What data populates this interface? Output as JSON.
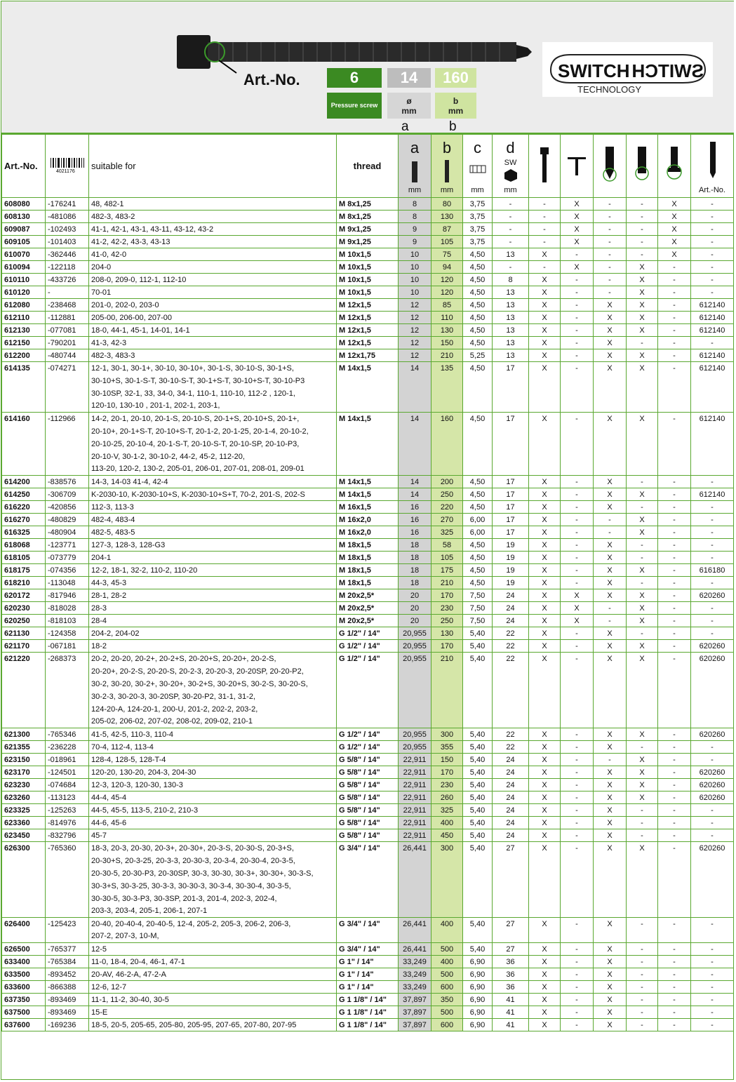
{
  "header": {
    "art_label": "Art.-No.",
    "box_art_value": "6",
    "box_art_caption": "Pressure screw",
    "box_a_value": "14",
    "box_a_caption_1": "ø",
    "box_a_caption_2": "mm",
    "box_b_value": "160",
    "box_b_caption_1": "b",
    "box_b_caption_2": "mm",
    "letter_a": "a",
    "letter_b": "b",
    "logo_text_1": "SWITCH",
    "logo_text_2": "SWITCH",
    "logo_sub": "TECHNOLOGY"
  },
  "columns": {
    "art": "Art.-No.",
    "barcode_num": "4021176",
    "suitable": "suitable for",
    "thread": "thread",
    "a": "a",
    "a_unit": "mm",
    "b": "b",
    "b_unit": "mm",
    "c": "c",
    "c_unit": "mm",
    "c_scale": "1 2 3",
    "d": "d",
    "d_sw": "SW",
    "d_unit": "mm",
    "last": "Art.-No."
  },
  "rows": [
    {
      "art": "608080",
      "code": "-176241",
      "lines": [
        "48, 482-1"
      ],
      "thread": "M  8x1,25",
      "a": "8",
      "b": "80",
      "c": "3,75",
      "d": "-",
      "f1": "-",
      "f2": "X",
      "f3": "-",
      "f4": "-",
      "f5": "X",
      "last": "-"
    },
    {
      "art": "608130",
      "code": "-481086",
      "lines": [
        "482-3, 483-2"
      ],
      "thread": "M  8x1,25",
      "a": "8",
      "b": "130",
      "c": "3,75",
      "d": "-",
      "f1": "-",
      "f2": "X",
      "f3": "-",
      "f4": "-",
      "f5": "X",
      "last": "-"
    },
    {
      "art": "609087",
      "code": "-102493",
      "lines": [
        "41-1, 42-1, 43-1, 43-11, 43-12, 43-2"
      ],
      "thread": "M  9x1,25",
      "a": "9",
      "b": "87",
      "c": "3,75",
      "d": "-",
      "f1": "-",
      "f2": "X",
      "f3": "-",
      "f4": "-",
      "f5": "X",
      "last": "-"
    },
    {
      "art": "609105",
      "code": "-101403",
      "lines": [
        "41-2, 42-2, 43-3, 43-13"
      ],
      "thread": "M  9x1,25",
      "a": "9",
      "b": "105",
      "c": "3,75",
      "d": "-",
      "f1": "-",
      "f2": "X",
      "f3": "-",
      "f4": "-",
      "f5": "X",
      "last": "-"
    },
    {
      "art": "610070",
      "code": "-362446",
      "lines": [
        "41-0, 42-0"
      ],
      "thread": "M 10x1,5",
      "a": "10",
      "b": "75",
      "c": "4,50",
      "d": "13",
      "f1": "X",
      "f2": "-",
      "f3": "-",
      "f4": "-",
      "f5": "X",
      "last": "-"
    },
    {
      "art": "610094",
      "code": "-122118",
      "lines": [
        "204-0"
      ],
      "thread": "M 10x1,5",
      "a": "10",
      "b": "94",
      "c": "4,50",
      "d": "-",
      "f1": "-",
      "f2": "X",
      "f3": "-",
      "f4": "X",
      "f5": "-",
      "last": "-"
    },
    {
      "art": "610110",
      "code": "-433726",
      "lines": [
        "208-0, 209-0, 112-1, 112-10"
      ],
      "thread": "M 10x1,5",
      "a": "10",
      "b": "120",
      "c": "4,50",
      "d": "8",
      "f1": "X",
      "f2": "-",
      "f3": "-",
      "f4": "X",
      "f5": "-",
      "last": "-"
    },
    {
      "art": "610120",
      "code": "-",
      "lines": [
        "70-01"
      ],
      "thread": "M 10x1,5",
      "a": "10",
      "b": "120",
      "c": "4,50",
      "d": "13",
      "f1": "X",
      "f2": "-",
      "f3": "-",
      "f4": "X",
      "f5": "-",
      "last": "-"
    },
    {
      "art": "612080",
      "code": "-238468",
      "lines": [
        "201-0, 202-0, 203-0"
      ],
      "thread": "M 12x1,5",
      "a": "12",
      "b": "85",
      "c": "4,50",
      "d": "13",
      "f1": "X",
      "f2": "-",
      "f3": "X",
      "f4": "X",
      "f5": "-",
      "last": "612140"
    },
    {
      "art": "612110",
      "code": "-112881",
      "lines": [
        "205-00, 206-00, 207-00"
      ],
      "thread": "M 12x1,5",
      "a": "12",
      "b": "110",
      "c": "4,50",
      "d": "13",
      "f1": "X",
      "f2": "-",
      "f3": "X",
      "f4": "X",
      "f5": "-",
      "last": "612140"
    },
    {
      "art": "612130",
      "code": "-077081",
      "lines": [
        "18-0, 44-1, 45-1, 14-01, 14-1"
      ],
      "thread": "M 12x1,5",
      "a": "12",
      "b": "130",
      "c": "4,50",
      "d": "13",
      "f1": "X",
      "f2": "-",
      "f3": "X",
      "f4": "X",
      "f5": "-",
      "last": "612140"
    },
    {
      "art": "612150",
      "code": "-790201",
      "lines": [
        "41-3, 42-3"
      ],
      "thread": "M 12x1,5",
      "a": "12",
      "b": "150",
      "c": "4,50",
      "d": "13",
      "f1": "X",
      "f2": "-",
      "f3": "X",
      "f4": "-",
      "f5": "-",
      "last": "-"
    },
    {
      "art": "612200",
      "code": "-480744",
      "lines": [
        "482-3, 483-3"
      ],
      "thread": "M 12x1,75",
      "a": "12",
      "b": "210",
      "c": "5,25",
      "d": "13",
      "f1": "X",
      "f2": "-",
      "f3": "X",
      "f4": "X",
      "f5": "-",
      "last": "612140"
    },
    {
      "art": "614135",
      "code": "-074271",
      "lines": [
        "12-1, 30-1, 30-1+, 30-10, 30-10+, 30-1-S, 30-10-S, 30-1+S,",
        "30-10+S, 30-1-S-T, 30-10-S-T, 30-1+S-T, 30-10+S-T, 30-10-P3",
        "30-10SP, 32-1, 33, 34-0, 34-1, 110-1, 110-10, 112-2 , 120-1,",
        "120-10, 130-10 , 201-1, 202-1, 203-1,"
      ],
      "thread": "M 14x1,5",
      "a": "14",
      "b": "135",
      "c": "4,50",
      "d": "17",
      "f1": "X",
      "f2": "-",
      "f3": "X",
      "f4": "X",
      "f5": "-",
      "last": "612140"
    },
    {
      "art": "614160",
      "code": "-112966",
      "lines": [
        "14-2, 20-1, 20-10, 20-1-S, 20-10-S, 20-1+S,  20-10+S,  20-1+,",
        "20-10+, 20-1+S-T, 20-10+S-T, 20-1-2, 20-1-25, 20-1-4, 20-10-2,",
        "20-10-25, 20-10-4, 20-1-S-T, 20-10-S-T, 20-10-SP,  20-10-P3,",
        "20-10-V, 30-1-2, 30-10-2, 44-2, 45-2, 112-20,",
        "113-20, 120-2, 130-2, 205-01, 206-01, 207-01, 208-01, 209-01"
      ],
      "thread": "M 14x1,5",
      "a": "14",
      "b": "160",
      "c": "4,50",
      "d": "17",
      "f1": "X",
      "f2": "-",
      "f3": "X",
      "f4": "X",
      "f5": "-",
      "last": "612140"
    },
    {
      "art": "614200",
      "code": "-838576",
      "lines": [
        "14-3, 14-03 41-4, 42-4"
      ],
      "thread": "M 14x1,5",
      "a": "14",
      "b": "200",
      "c": "4,50",
      "d": "17",
      "f1": "X",
      "f2": "-",
      "f3": "X",
      "f4": "-",
      "f5": "-",
      "last": "-"
    },
    {
      "art": "614250",
      "code": "-306709",
      "lines": [
        "K-2030-10, K-2030-10+S, K-2030-10+S+T, 70-2, 201-S, 202-S"
      ],
      "thread": "M 14x1,5",
      "a": "14",
      "b": "250",
      "c": "4,50",
      "d": "17",
      "f1": "X",
      "f2": "-",
      "f3": "X",
      "f4": "X",
      "f5": "-",
      "last": "612140"
    },
    {
      "art": "616220",
      "code": "-420856",
      "lines": [
        "112-3, 113-3"
      ],
      "thread": "M 16x1,5",
      "a": "16",
      "b": "220",
      "c": "4,50",
      "d": "17",
      "f1": "X",
      "f2": "-",
      "f3": "X",
      "f4": "-",
      "f5": "-",
      "last": "-"
    },
    {
      "art": "616270",
      "code": "-480829",
      "lines": [
        "482-4, 483-4"
      ],
      "thread": "M 16x2,0",
      "a": "16",
      "b": "270",
      "c": "6,00",
      "d": "17",
      "f1": "X",
      "f2": "-",
      "f3": "-",
      "f4": "X",
      "f5": "-",
      "last": "-"
    },
    {
      "art": "616325",
      "code": "-480904",
      "lines": [
        "482-5, 483-5"
      ],
      "thread": "M 16x2,0",
      "a": "16",
      "b": "325",
      "c": "6,00",
      "d": "17",
      "f1": "X",
      "f2": "-",
      "f3": "-",
      "f4": "X",
      "f5": "-",
      "last": "-"
    },
    {
      "art": "618068",
      "code": "-123771",
      "lines": [
        "127-3, 128-3, 128-G3"
      ],
      "thread": "M 18x1,5",
      "a": "18",
      "b": "58",
      "c": "4,50",
      "d": "19",
      "f1": "X",
      "f2": "-",
      "f3": "X",
      "f4": "-",
      "f5": "-",
      "last": "-"
    },
    {
      "art": "618105",
      "code": "-073779",
      "lines": [
        "204-1"
      ],
      "thread": "M 18x1,5",
      "a": "18",
      "b": "105",
      "c": "4,50",
      "d": "19",
      "f1": "X",
      "f2": "-",
      "f3": "X",
      "f4": "-",
      "f5": "-",
      "last": "-"
    },
    {
      "art": "618175",
      "code": "-074356",
      "lines": [
        "12-2, 18-1, 32-2, 110-2, 110-20"
      ],
      "thread": "M 18x1,5",
      "a": "18",
      "b": "175",
      "c": "4,50",
      "d": "19",
      "f1": "X",
      "f2": "-",
      "f3": "X",
      "f4": "X",
      "f5": "-",
      "last": "616180"
    },
    {
      "art": "618210",
      "code": "-113048",
      "lines": [
        "44-3, 45-3"
      ],
      "thread": "M 18x1,5",
      "a": "18",
      "b": "210",
      "c": "4,50",
      "d": "19",
      "f1": "X",
      "f2": "-",
      "f3": "X",
      "f4": "-",
      "f5": "-",
      "last": "-"
    },
    {
      "art": "620172",
      "code": "-817946",
      "lines": [
        "28-1, 28-2"
      ],
      "thread": "M 20x2,5*",
      "a": "20",
      "b": "170",
      "c": "7,50",
      "d": "24",
      "f1": "X",
      "f2": "X",
      "f3": "X",
      "f4": "X",
      "f5": "-",
      "last": "620260"
    },
    {
      "art": "620230",
      "code": "-818028",
      "lines": [
        "28-3"
      ],
      "thread": "M 20x2,5*",
      "a": "20",
      "b": "230",
      "c": "7,50",
      "d": "24",
      "f1": "X",
      "f2": "X",
      "f3": "-",
      "f4": "X",
      "f5": "-",
      "last": "-"
    },
    {
      "art": "620250",
      "code": "-818103",
      "lines": [
        "28-4"
      ],
      "thread": "M 20x2,5*",
      "a": "20",
      "b": "250",
      "c": "7,50",
      "d": "24",
      "f1": "X",
      "f2": "X",
      "f3": "-",
      "f4": "X",
      "f5": "-",
      "last": "-"
    },
    {
      "art": "621130",
      "code": "-124358",
      "lines": [
        "204-2, 204-02"
      ],
      "thread": "G 1/2\" / 14\"",
      "a": "20,955",
      "b": "130",
      "c": "5,40",
      "d": "22",
      "f1": "X",
      "f2": "-",
      "f3": "X",
      "f4": "-",
      "f5": "-",
      "last": "-"
    },
    {
      "art": "621170",
      "code": "-067181",
      "lines": [
        "18-2"
      ],
      "thread": "G 1/2\" / 14\"",
      "a": "20,955",
      "b": "170",
      "c": "5,40",
      "d": "22",
      "f1": "X",
      "f2": "-",
      "f3": "X",
      "f4": "X",
      "f5": "-",
      "last": "620260"
    },
    {
      "art": "621220",
      "code": "-268373",
      "lines": [
        "20-2, 20-20, 20-2+, 20-2+S, 20-20+S, 20-20+, 20-2-S,",
        "20-20+, 20-2-S, 20-20-S, 20-2-3, 20-20-3, 20-20SP, 20-20-P2,",
        "30-2, 30-20, 30-2+, 30-20+, 30-2+S, 30-20+S, 30-2-S, 30-20-S,",
        "30-2-3, 30-20-3, 30-20SP, 30-20-P2, 31-1, 31-2,",
        "124-20-A, 124-20-1, 200-U, 201-2, 202-2, 203-2,",
        "205-02, 206-02, 207-02, 208-02, 209-02, 210-1"
      ],
      "thread": "G 1/2\" / 14\"",
      "a": "20,955",
      "b": "210",
      "c": "5,40",
      "d": "22",
      "f1": "X",
      "f2": "-",
      "f3": "X",
      "f4": "X",
      "f5": "-",
      "last": "620260"
    },
    {
      "art": "621300",
      "code": "-765346",
      "lines": [
        "41-5, 42-5, 110-3, 110-4"
      ],
      "thread": "G 1/2\" / 14\"",
      "a": "20,955",
      "b": "300",
      "c": "5,40",
      "d": "22",
      "f1": "X",
      "f2": "-",
      "f3": "X",
      "f4": "X",
      "f5": "-",
      "last": "620260"
    },
    {
      "art": "621355",
      "code": "-236228",
      "lines": [
        "70-4, 112-4, 113-4"
      ],
      "thread": "G 1/2\" / 14\"",
      "a": "20,955",
      "b": "355",
      "c": "5,40",
      "d": "22",
      "f1": "X",
      "f2": "-",
      "f3": "X",
      "f4": "-",
      "f5": "-",
      "last": "-"
    },
    {
      "art": "623150",
      "code": "-018961",
      "lines": [
        "128-4, 128-5, 128-T-4"
      ],
      "thread": "G 5/8\" / 14\"",
      "a": "22,911",
      "b": "150",
      "c": "5,40",
      "d": "24",
      "f1": "X",
      "f2": "-",
      "f3": "-",
      "f4": "X",
      "f5": "-",
      "last": "-"
    },
    {
      "art": "623170",
      "code": "-124501",
      "lines": [
        "120-20, 130-20, 204-3, 204-30"
      ],
      "thread": "G 5/8\" / 14\"",
      "a": "22,911",
      "b": "170",
      "c": "5,40",
      "d": "24",
      "f1": "X",
      "f2": "-",
      "f3": "X",
      "f4": "X",
      "f5": "-",
      "last": "620260"
    },
    {
      "art": "623230",
      "code": "-074684",
      "lines": [
        "12-3, 120-3, 120-30, 130-3"
      ],
      "thread": "G 5/8\" / 14\"",
      "a": "22,911",
      "b": "230",
      "c": "5,40",
      "d": "24",
      "f1": "X",
      "f2": "-",
      "f3": "X",
      "f4": "X",
      "f5": "-",
      "last": "620260"
    },
    {
      "art": "623260",
      "code": "-113123",
      "lines": [
        "44-4, 45-4"
      ],
      "thread": "G 5/8\" / 14\"",
      "a": "22,911",
      "b": "260",
      "c": "5,40",
      "d": "24",
      "f1": "X",
      "f2": "-",
      "f3": "X",
      "f4": "X",
      "f5": "-",
      "last": "620260"
    },
    {
      "art": "623325",
      "code": "-125263",
      "lines": [
        "44-5, 45-5, 113-5, 210-2, 210-3"
      ],
      "thread": "G 5/8\" / 14\"",
      "a": "22,911",
      "b": "325",
      "c": "5,40",
      "d": "24",
      "f1": "X",
      "f2": "-",
      "f3": "X",
      "f4": "-",
      "f5": "-",
      "last": "-"
    },
    {
      "art": "623360",
      "code": "-814976",
      "lines": [
        "44-6, 45-6"
      ],
      "thread": "G 5/8\" / 14\"",
      "a": "22,911",
      "b": "400",
      "c": "5,40",
      "d": "24",
      "f1": "X",
      "f2": "-",
      "f3": "X",
      "f4": "-",
      "f5": "-",
      "last": "-"
    },
    {
      "art": "623450",
      "code": "-832796",
      "lines": [
        "45-7"
      ],
      "thread": "G 5/8\" / 14\"",
      "a": "22,911",
      "b": "450",
      "c": "5,40",
      "d": "24",
      "f1": "X",
      "f2": "-",
      "f3": "X",
      "f4": "-",
      "f5": "-",
      "last": "-"
    },
    {
      "art": "626300",
      "code": "-765360",
      "lines": [
        "18-3, 20-3, 20-30, 20-3+, 20-30+, 20-3-S, 20-30-S,  20-3+S,",
        "20-30+S, 20-3-25, 20-3-3, 20-30-3, 20-3-4, 20-30-4, 20-3-5,",
        "20-30-5, 20-30-P3, 20-30SP, 30-3, 30-30, 30-3+, 30-30+, 30-3-S,",
        "30-3+S, 30-3-25, 30-3-3, 30-30-3, 30-3-4, 30-30-4, 30-3-5,",
        "30-30-5, 30-3-P3, 30-3SP, 201-3, 201-4, 202-3, 202-4,",
        "203-3, 203-4, 205-1, 206-1, 207-1"
      ],
      "thread": "G 3/4\" / 14\"",
      "a": "26,441",
      "b": "300",
      "c": "5,40",
      "d": "27",
      "f1": "X",
      "f2": "-",
      "f3": "X",
      "f4": "X",
      "f5": "-",
      "last": "620260"
    },
    {
      "art": "626400",
      "code": "-125423",
      "lines": [
        "20-40, 20-40-4, 20-40-5, 12-4, 205-2, 205-3, 206-2, 206-3,",
        "207-2, 207-3, 10-M,"
      ],
      "thread": "G 3/4\" / 14\"",
      "a": "26,441",
      "b": "400",
      "c": "5,40",
      "d": "27",
      "f1": "X",
      "f2": "-",
      "f3": "X",
      "f4": "-",
      "f5": "-",
      "last": "-"
    },
    {
      "art": "626500",
      "code": "-765377",
      "lines": [
        "12-5"
      ],
      "thread": "G 3/4\" / 14\"",
      "a": "26,441",
      "b": "500",
      "c": "5,40",
      "d": "27",
      "f1": "X",
      "f2": "-",
      "f3": "X",
      "f4": "-",
      "f5": "-",
      "last": "-"
    },
    {
      "art": "633400",
      "code": "-765384",
      "lines": [
        "11-0, 18-4, 20-4, 46-1, 47-1"
      ],
      "thread": "G 1\" / 14\"",
      "a": "33,249",
      "b": "400",
      "c": "6,90",
      "d": "36",
      "f1": "X",
      "f2": "-",
      "f3": "X",
      "f4": "-",
      "f5": "-",
      "last": "-"
    },
    {
      "art": "633500",
      "code": "-893452",
      "lines": [
        "20-AV, 46-2-A, 47-2-A"
      ],
      "thread": "G 1\" / 14\"",
      "a": "33,249",
      "b": "500",
      "c": "6,90",
      "d": "36",
      "f1": "X",
      "f2": "-",
      "f3": "X",
      "f4": "-",
      "f5": "-",
      "last": "-"
    },
    {
      "art": "633600",
      "code": "-866388",
      "lines": [
        "12-6, 12-7"
      ],
      "thread": "G 1\" / 14\"",
      "a": "33,249",
      "b": "600",
      "c": "6,90",
      "d": "36",
      "f1": "X",
      "f2": "-",
      "f3": "X",
      "f4": "-",
      "f5": "-",
      "last": "-"
    },
    {
      "art": "637350",
      "code": "-893469",
      "lines": [
        "11-1, 11-2, 30-40, 30-5"
      ],
      "thread": "G 1 1/8\" / 14\"",
      "a": "37,897",
      "b": "350",
      "c": "6,90",
      "d": "41",
      "f1": "X",
      "f2": "-",
      "f3": "X",
      "f4": "-",
      "f5": "-",
      "last": "-"
    },
    {
      "art": "637500",
      "code": "-893469",
      "lines": [
        "15-E"
      ],
      "thread": "G 1 1/8\" / 14\"",
      "a": "37,897",
      "b": "500",
      "c": "6,90",
      "d": "41",
      "f1": "X",
      "f2": "-",
      "f3": "X",
      "f4": "-",
      "f5": "-",
      "last": "-"
    },
    {
      "art": "637600",
      "code": "-169236",
      "lines": [
        "18-5, 20-5, 205-65, 205-80, 205-95, 207-65, 207-80, 207-95"
      ],
      "thread": "G 1 1/8\" / 14\"",
      "a": "37,897",
      "b": "600",
      "c": "6,90",
      "d": "41",
      "f1": "X",
      "f2": "-",
      "f3": "X",
      "f4": "-",
      "f5": "-",
      "last": "-"
    }
  ]
}
